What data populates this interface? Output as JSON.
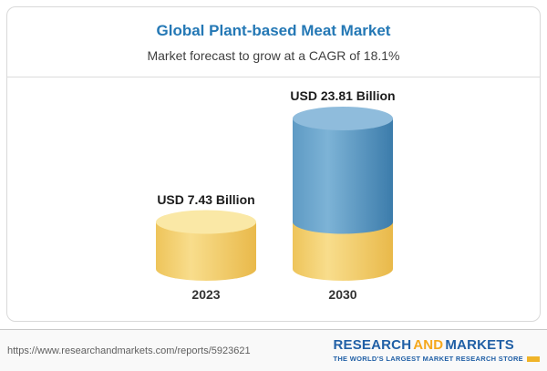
{
  "chart": {
    "title": "Global Plant-based Meat Market",
    "subtitle": "Market forecast to grow at a CAGR of 18.1%"
  },
  "chart_data": {
    "type": "bar",
    "variant": "3d-cylinder",
    "title": "Global Plant-based Meat Market",
    "subtitle": "Market forecast to grow at a CAGR of 18.1%",
    "cagr": "18.1%",
    "unit": "USD Billion",
    "categories": [
      "2023",
      "2030"
    ],
    "values": [
      7.43,
      23.81
    ],
    "value_labels": [
      "USD 7.43 Billion",
      "USD 23.81 Billion"
    ],
    "note": "2030 cylinder shows the 2023 value as a gold base segment with blue growth above it",
    "colors": {
      "gold_body": "#f4cf62",
      "gold_top": "#fae8a6",
      "blue_body": "#5794c0",
      "blue_top": "#8fbcdc"
    }
  },
  "footer": {
    "url": "https://www.researchandmarkets.com/reports/5923621",
    "logo": {
      "word1": "RESEARCH",
      "word2": "AND",
      "word3": "MARKETS",
      "tagline": "THE WORLD'S LARGEST MARKET RESEARCH STORE"
    }
  }
}
